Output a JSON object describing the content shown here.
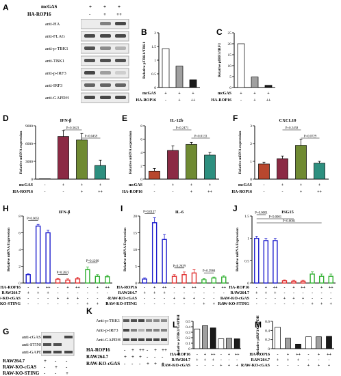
{
  "panels": {
    "A": {
      "letter": "A",
      "rows": [
        {
          "label": "mcGAS",
          "values": [
            "+",
            "+",
            "+"
          ]
        },
        {
          "label": "HA-ROP16",
          "values": [
            "-",
            "+",
            "++"
          ]
        }
      ],
      "blots": [
        "anti-HA",
        "anti-FLAG",
        "anti-p-TBK1",
        "anti-TBK1",
        "anti-p-IRF3",
        "anti-IRF3",
        "anti-GAPDH"
      ]
    },
    "B": {
      "letter": "B",
      "ylabel": "Relative pTBK1/TBK1"
    },
    "C": {
      "letter": "C",
      "ylabel": "Relative pIRF3/IRF3"
    },
    "D": {
      "letter": "D",
      "title": "IFN-β",
      "ylabel": "Relative mRNA expression",
      "pvals": [
        "P=0.3623",
        "P=0.0459"
      ]
    },
    "E": {
      "letter": "E",
      "title": "IL-12b",
      "ylabel": "Relative mRNA expression",
      "pvals": [
        "P=0.2471",
        "P=0.0133"
      ]
    },
    "F": {
      "letter": "F",
      "title": "CXCL10",
      "ylabel": "Relative mRNA expression",
      "pvals": [
        "P=0.2458",
        "P=0.0729"
      ]
    },
    "H": {
      "letter": "H",
      "title": "IFN-β",
      "ylabel": "Relative mRNA Expression",
      "pvals": [
        "P=0.0051",
        "P=0.2625",
        "P=0.1200"
      ]
    },
    "I": {
      "letter": "I",
      "title": "IL-6",
      "ylabel": "Relative mRNA Expression",
      "pvals": [
        "P=0.0137",
        "P=0.2639",
        "P=0.5984"
      ]
    },
    "J": {
      "letter": "J",
      "title": "ISG15",
      "ylabel": "Relative mRNA Expression",
      "pvals": [
        "P=0.0001",
        "P<0.0001",
        "P<0.0001"
      ]
    },
    "G": {
      "letter": "G",
      "blots": [
        "anti-cGAS",
        "anti-STING",
        "anti-GAPDH"
      ],
      "rows": [
        {
          "label": "RAW264.7",
          "values": [
            "+",
            "-",
            "-"
          ]
        },
        {
          "label": "RAW-KO-cGAS",
          "values": [
            "-",
            "+",
            "-"
          ]
        },
        {
          "label": "RAW-KO-STING",
          "values": [
            "-",
            "-",
            "+"
          ]
        }
      ]
    },
    "K": {
      "letter": "K",
      "blots": [
        "Anti-p-TBK1",
        "Anti-p-IRF3",
        "Anti-GAPDH"
      ],
      "rows": [
        {
          "label": "HA-ROP16",
          "values": [
            "-",
            "+",
            "++",
            "-",
            "+",
            "++"
          ]
        },
        {
          "label": "RAW264.7",
          "values": [
            "+",
            "+",
            "+",
            "-",
            "-",
            "-"
          ]
        },
        {
          "label": "RAW-KO-cGAS",
          "values": [
            "-",
            "-",
            "-",
            "+",
            "+",
            "+"
          ]
        }
      ]
    },
    "L": {
      "letter": "L",
      "ylabel": "Relative pTBK1/GAPDH"
    },
    "M": {
      "letter": "M",
      "ylabel": "Relative pIRF3/GAPDH"
    }
  },
  "cond_three": {
    "mcgas": "mcGAS",
    "rop": "HA-ROP16",
    "mcgas_vals": [
      "+",
      "+",
      "+"
    ],
    "rop_vals": [
      "-",
      "+",
      "++"
    ]
  },
  "cond_four": {
    "mcgas_vals": [
      "-",
      "+",
      "+",
      "+"
    ],
    "rop_vals": [
      "-",
      "-",
      "+",
      "++"
    ]
  },
  "cond_twelve": {
    "rows": [
      {
        "label": "HA-ROP16",
        "values": [
          "-",
          "+",
          "++",
          "-",
          "+",
          "++",
          "-",
          "+",
          "++"
        ]
      },
      {
        "label": "RAW264.7",
        "values": [
          "+",
          "+",
          "+",
          "-",
          "-",
          "-",
          "-",
          "-",
          "-"
        ]
      },
      {
        "label": "RAW-KO-cGAS",
        "values": [
          "-",
          "-",
          "-",
          "+",
          "+",
          "+",
          "-",
          "-",
          "-"
        ]
      },
      {
        "label": "RAW-KO-STING",
        "values": [
          "-",
          "-",
          "-",
          "-",
          "-",
          "-",
          "+",
          "+",
          "+"
        ]
      }
    ]
  },
  "cond_six": {
    "rows": [
      {
        "label": "HA-ROP16",
        "values": [
          "-",
          "+",
          "++",
          "-",
          "+",
          "++"
        ]
      },
      {
        "label": "RAW264.7",
        "values": [
          "+",
          "+",
          "+",
          "-",
          "-",
          "-"
        ]
      },
      {
        "label": "RAW-KO-cGAS",
        "values": [
          "-",
          "-",
          "-",
          "+",
          "+",
          "+"
        ]
      }
    ]
  },
  "chart_data": [
    {
      "panel": "B",
      "type": "bar",
      "categories": [
        "1",
        "2",
        "3"
      ],
      "values": [
        1.42,
        0.78,
        0.28
      ],
      "ylim": [
        0,
        2.0
      ],
      "yticks": [
        0,
        0.5,
        1.0,
        1.5,
        2.0
      ],
      "colors": [
        "#ffffff",
        "#a0a0a0",
        "#1a1a1a"
      ]
    },
    {
      "panel": "C",
      "type": "bar",
      "categories": [
        "1",
        "2",
        "3"
      ],
      "values": [
        20,
        4.8,
        1.0
      ],
      "ylim": [
        0,
        25
      ],
      "yticks": [
        0,
        5,
        10,
        15,
        20,
        25
      ],
      "colors": [
        "#ffffff",
        "#a0a0a0",
        "#1a1a1a"
      ]
    },
    {
      "panel": "D",
      "type": "bar",
      "categories": [
        "1",
        "2",
        "3",
        "4"
      ],
      "values": [
        0,
        7200,
        6600,
        2300
      ],
      "errors": [
        0,
        1000,
        1100,
        900
      ],
      "ylim": [
        0,
        9000
      ],
      "yticks": [
        0,
        3000,
        6000,
        9000
      ],
      "colors": [
        "#ffffff",
        "#8b2a44",
        "#6f8a32",
        "#2d8f7f"
      ]
    },
    {
      "panel": "E",
      "type": "bar",
      "categories": [
        "1",
        "2",
        "3",
        "4"
      ],
      "values": [
        1.2,
        4.3,
        5.2,
        3.6
      ],
      "errors": [
        0.4,
        0.7,
        0.3,
        0.4
      ],
      "ylim": [
        0,
        8
      ],
      "yticks": [
        0,
        2,
        4,
        6,
        8
      ],
      "colors": [
        "#b8472e",
        "#8b2a44",
        "#6f8a32",
        "#2d8f7f"
      ]
    },
    {
      "panel": "F",
      "type": "bar",
      "categories": [
        "1",
        "2",
        "3",
        "4"
      ],
      "values": [
        0.85,
        1.15,
        1.9,
        0.9
      ],
      "errors": [
        0.1,
        0.15,
        0.35,
        0.1
      ],
      "ylim": [
        0,
        3
      ],
      "yticks": [
        0,
        1,
        2,
        3
      ],
      "colors": [
        "#b8472e",
        "#8b2a44",
        "#6f8a32",
        "#2d8f7f"
      ]
    },
    {
      "panel": "H",
      "type": "bar",
      "categories": [
        "1",
        "2",
        "3",
        "4",
        "5",
        "6",
        "7",
        "8",
        "9"
      ],
      "values": [
        1.0,
        6.8,
        6.0,
        0.45,
        0.35,
        0.5,
        1.6,
        0.8,
        0.75
      ],
      "errors": [
        0.1,
        0.2,
        0.3,
        0.1,
        0.15,
        0.2,
        0.3,
        0.2,
        0.2
      ],
      "ylim": [
        0,
        8
      ],
      "yticks": [
        0,
        2,
        4,
        6,
        8
      ],
      "colors": [
        "#1a1acc",
        "#1a1acc",
        "#1a1acc",
        "#e03030",
        "#e03030",
        "#e03030",
        "#30b030",
        "#30b030",
        "#30b030"
      ]
    },
    {
      "panel": "I",
      "type": "bar",
      "categories": [
        "1",
        "2",
        "3",
        "4",
        "5",
        "6",
        "7",
        "8",
        "9"
      ],
      "values": [
        1.2,
        18.0,
        13.0,
        2.0,
        2.5,
        3.0,
        1.0,
        1.5,
        1.8
      ],
      "errors": [
        0.3,
        1.5,
        1.5,
        0.5,
        0.8,
        1.0,
        0.3,
        0.3,
        0.4
      ],
      "ylim": [
        0,
        20
      ],
      "yticks": [
        0,
        5,
        10,
        15,
        20
      ],
      "colors": [
        "#1a1acc",
        "#1a1acc",
        "#1a1acc",
        "#e03030",
        "#e03030",
        "#e03030",
        "#30b030",
        "#30b030",
        "#30b030"
      ]
    },
    {
      "panel": "J",
      "type": "bar",
      "categories": [
        "1",
        "2",
        "3",
        "4",
        "5",
        "6",
        "7",
        "8",
        "9"
      ],
      "values": [
        1.0,
        0.95,
        0.95,
        0.05,
        0.04,
        0.04,
        0.2,
        0.15,
        0.15
      ],
      "errors": [
        0.05,
        0.05,
        0.05,
        0.02,
        0.02,
        0.02,
        0.05,
        0.05,
        0.05
      ],
      "ylim": [
        0,
        1.5
      ],
      "yticks": [
        0,
        0.5,
        1.0,
        1.5
      ],
      "colors": [
        "#1a1acc",
        "#1a1acc",
        "#1a1acc",
        "#e03030",
        "#e03030",
        "#e03030",
        "#30b030",
        "#30b030",
        "#30b030"
      ]
    },
    {
      "panel": "L",
      "type": "bar",
      "categories": [
        "1",
        "2",
        "3",
        "4",
        "5",
        "6"
      ],
      "values": [
        0.36,
        0.42,
        0.38,
        0.18,
        0.19,
        0.18
      ],
      "ylim": [
        0,
        0.5
      ],
      "yticks": [
        0,
        0.1,
        0.2,
        0.3,
        0.4,
        0.5
      ],
      "colors": [
        "#ffffff",
        "#a0a0a0",
        "#1a1a1a",
        "#ffffff",
        "#a0a0a0",
        "#1a1a1a"
      ]
    },
    {
      "panel": "M",
      "type": "bar",
      "categories": [
        "1",
        "2",
        "3",
        "4",
        "5",
        "6"
      ],
      "values": [
        0.47,
        0.23,
        0.1,
        0.26,
        0.26,
        0.27
      ],
      "ylim": [
        0,
        0.6
      ],
      "yticks": [
        0,
        0.2,
        0.4,
        0.6
      ],
      "colors": [
        "#ffffff",
        "#a0a0a0",
        "#1a1a1a",
        "#ffffff",
        "#a0a0a0",
        "#1a1a1a"
      ]
    }
  ]
}
